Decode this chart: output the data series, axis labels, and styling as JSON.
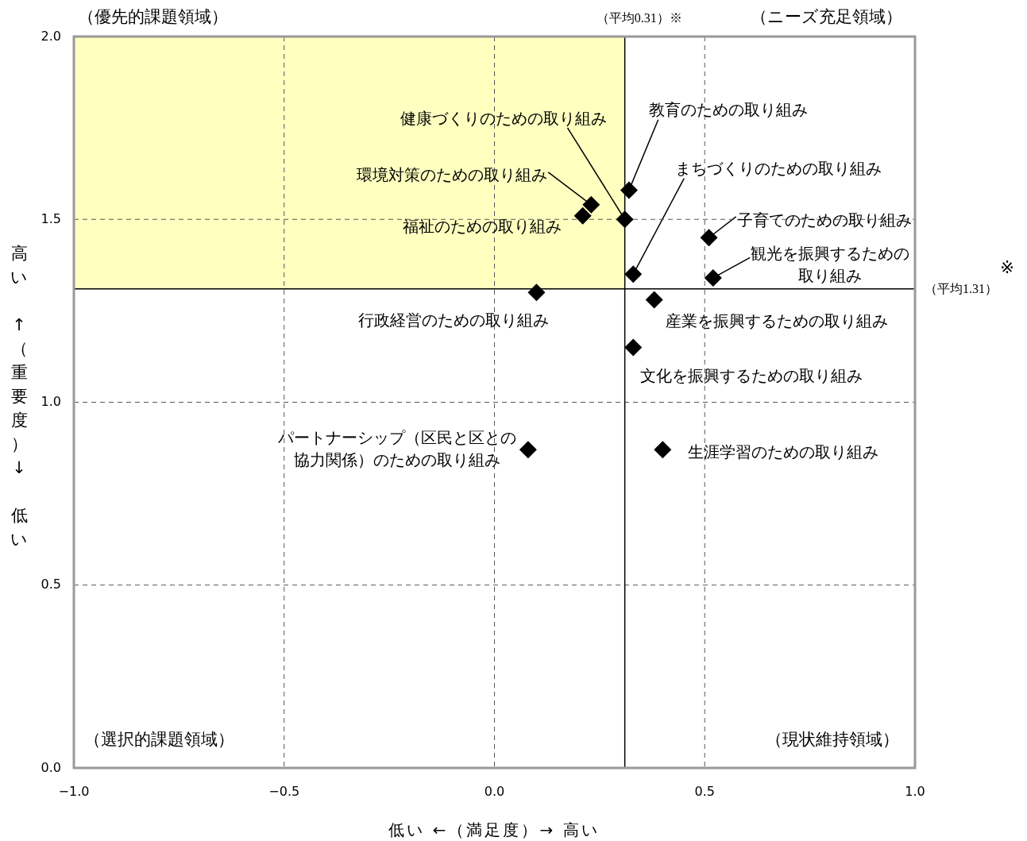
{
  "chart_data": {
    "type": "scatter",
    "xlabel": "低い ←（満足度）→ 高い",
    "ylabel": "高い ↑（重要度）↓ 低い",
    "x": [
      0.32,
      0.31,
      0.23,
      0.21,
      0.33,
      0.51,
      0.52,
      0.1,
      0.38,
      0.33,
      0.08,
      0.4
    ],
    "values": [
      1.58,
      1.5,
      1.54,
      1.51,
      1.35,
      1.45,
      1.34,
      1.3,
      1.28,
      1.15,
      0.87,
      0.87
    ],
    "color": "#000000",
    "marker": "diamond",
    "grid": true,
    "xlim": [
      -1,
      1
    ],
    "ylim": [
      0,
      2
    ],
    "xticks": [
      {
        "value": -1,
        "label": "−1.0"
      },
      {
        "value": -0.5,
        "label": "−0.5"
      },
      {
        "value": 0,
        "label": "0.0"
      },
      {
        "value": 0.5,
        "label": "0.5"
      },
      {
        "value": 1,
        "label": "1.0"
      }
    ],
    "yticks": [
      {
        "value": 0,
        "label": "0.0"
      },
      {
        "value": 0.5,
        "label": "0.5"
      },
      {
        "value": 1,
        "label": "1.0"
      },
      {
        "value": 1.5,
        "label": "1.5"
      },
      {
        "value": 2,
        "label": "2.0"
      }
    ],
    "ref_lines": [
      {
        "axis": "x",
        "value": 0.31,
        "label": "（平均0.31）※"
      },
      {
        "axis": "y",
        "value": 1.31,
        "label": "（平均1.31）"
      }
    ],
    "bands": [
      {
        "axis": "x",
        "from": -1,
        "to": 0.31,
        "color": "#ffffc0"
      }
    ],
    "annotations": [
      {
        "text": "教育のための取り組み",
        "x": 0.32,
        "y": 1.58
      },
      {
        "text": "健康づくりのための取り組み",
        "x": 0.31,
        "y": 1.5
      },
      {
        "text": "環境対策のための取り組み",
        "x": 0.23,
        "y": 1.54
      },
      {
        "text": "福祉のための取り組み",
        "x": 0.21,
        "y": 1.51
      },
      {
        "text": "まちづくりのための取り組み",
        "x": 0.33,
        "y": 1.35
      },
      {
        "text": "子育てのための取り組み",
        "x": 0.51,
        "y": 1.45
      },
      {
        "text": "観光を振興するための取り組み",
        "x": 0.52,
        "y": 1.34
      },
      {
        "text": "行政経営のための取り組み",
        "x": 0.1,
        "y": 1.3
      },
      {
        "text": "産業を振興するための取り組み",
        "x": 0.38,
        "y": 1.28
      },
      {
        "text": "文化を振興するための取り組み",
        "x": 0.33,
        "y": 1.15
      },
      {
        "text": "パートナーシップ（区民と区との協力関係）のための取り組み",
        "x": 0.08,
        "y": 0.87
      },
      {
        "text": "生涯学習のための取り組み",
        "x": 0.4,
        "y": 0.87
      },
      "（優先的課題領域）",
      "（ニーズ充足領域）",
      "（選択的課題領域）",
      "（現状維持領域）",
      "※"
    ]
  }
}
